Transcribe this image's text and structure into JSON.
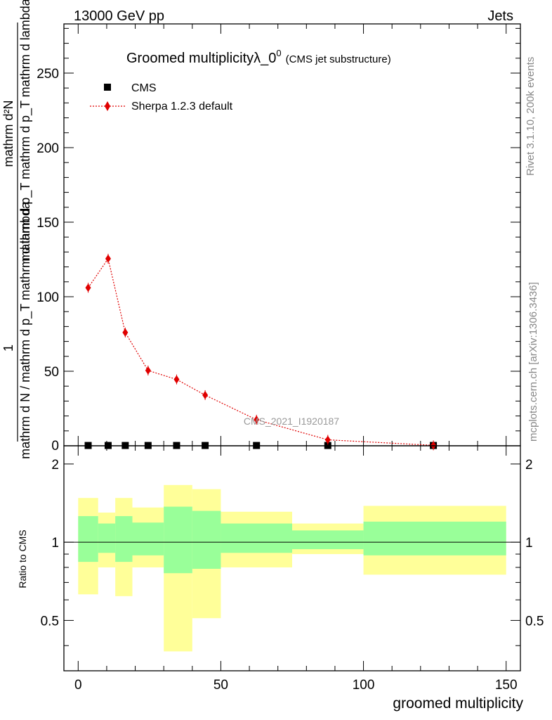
{
  "header": {
    "left": "13000 GeV pp",
    "right": "Jets"
  },
  "side_labels": {
    "rivet": "Rivet 3.1.10,  200k events",
    "mcplots": "mcplots.cern.ch [arXiv:1306.3436]"
  },
  "chart_data": {
    "type": "line",
    "title": "Groomed multiplicity",
    "title_symbol": "λ_0",
    "title_sup": "0",
    "subtitle": "(CMS jet substructure)",
    "watermark": "CMS_2021_I1920187",
    "ylabel": {
      "fraction_numerator": "1",
      "fraction_denominator": "mathrm d N / mathrm d p_T mathrm d lambda",
      "derivative_numerator": "mathrm d²N",
      "derivative_denominator": "mathrm d p_T mathrm d p_T mathrm d lambda"
    },
    "xlabel": "groomed multiplicity",
    "xlim": [
      -5,
      155
    ],
    "ylim": [
      0,
      283
    ],
    "x_ticks": [
      0,
      50,
      100,
      150
    ],
    "y_ticks": [
      50,
      100,
      150,
      200,
      250
    ],
    "legend_placement": "top-left",
    "series": [
      {
        "name": "CMS",
        "marker": "square",
        "color": "#000000",
        "x": [
          3.5,
          10.5,
          16.5,
          24.5,
          34.5,
          44.5,
          62.5,
          87.5,
          124.5
        ],
        "y": [
          0.2,
          0.2,
          0.2,
          0.2,
          0.2,
          0.2,
          0.2,
          0.2,
          0.2
        ]
      },
      {
        "name": "Sherpa 1.2.3 default",
        "marker": "diamond",
        "color": "#e00000",
        "line_style": "dotted",
        "x": [
          3.5,
          10.5,
          16.5,
          24.5,
          34.5,
          44.5,
          62.5,
          87.5,
          124.5
        ],
        "y": [
          106,
          125.5,
          76,
          50.5,
          44.5,
          34,
          17.5,
          4,
          0.3
        ]
      }
    ],
    "ratio": {
      "ylabel": "Ratio to CMS",
      "ylim": [
        0.32,
        2.35
      ],
      "y_ticks": [
        0.5,
        1,
        2
      ],
      "reference_line": 1,
      "colors": {
        "inner": "#99ff99",
        "outer": "#ffff99"
      },
      "bins": [
        {
          "x0": 0,
          "x1": 7,
          "in_lo": 0.84,
          "in_hi": 1.26,
          "out_lo": 0.63,
          "out_hi": 1.48
        },
        {
          "x0": 7,
          "x1": 13,
          "in_lo": 0.91,
          "in_hi": 1.18,
          "out_lo": 0.8,
          "out_hi": 1.3
        },
        {
          "x0": 13,
          "x1": 19,
          "in_lo": 0.84,
          "in_hi": 1.26,
          "out_lo": 0.62,
          "out_hi": 1.48
        },
        {
          "x0": 19,
          "x1": 30,
          "in_lo": 0.89,
          "in_hi": 1.19,
          "out_lo": 0.8,
          "out_hi": 1.36
        },
        {
          "x0": 30,
          "x1": 40,
          "in_lo": 0.76,
          "in_hi": 1.37,
          "out_lo": 0.38,
          "out_hi": 1.66
        },
        {
          "x0": 40,
          "x1": 50,
          "in_lo": 0.79,
          "in_hi": 1.32,
          "out_lo": 0.51,
          "out_hi": 1.6
        },
        {
          "x0": 50,
          "x1": 75,
          "in_lo": 0.91,
          "in_hi": 1.18,
          "out_lo": 0.8,
          "out_hi": 1.31
        },
        {
          "x0": 75,
          "x1": 100,
          "in_lo": 0.94,
          "in_hi": 1.11,
          "out_lo": 0.9,
          "out_hi": 1.18
        },
        {
          "x0": 100,
          "x1": 150,
          "in_lo": 0.89,
          "in_hi": 1.2,
          "out_lo": 0.75,
          "out_hi": 1.38
        }
      ]
    }
  }
}
